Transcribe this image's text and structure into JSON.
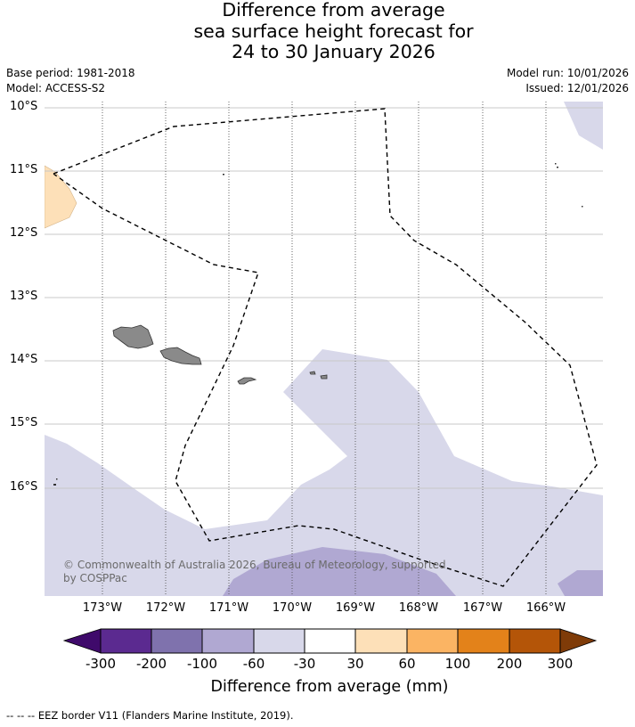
{
  "title": {
    "line1": "Difference from average",
    "line2": "sea surface height forecast for",
    "line3": "24 to 30 January 2026"
  },
  "meta": {
    "base_period": "Base period: 1981-2018",
    "model": "Model: ACCESS-S2",
    "model_run": "Model run: 10/01/2026",
    "issued": "Issued: 12/01/2026"
  },
  "map": {
    "lat_labels": [
      "10°S",
      "11°S",
      "12°S",
      "13°S",
      "14°S",
      "15°S",
      "16°S"
    ],
    "lon_labels": [
      "173°W",
      "172°W",
      "171°W",
      "170°W",
      "169°W",
      "168°W",
      "167°W",
      "166°W"
    ],
    "copyright_line1": "© Commonwealth of Australia 2026, Bureau of Meteorology, supported",
    "copyright_line2": "by COSPPac",
    "colors": {
      "land": "#8a8a8a",
      "band_minus60_minus30": "#d8d8ea",
      "band_minus100_minus60": "#b0a8d2",
      "band_30_60": "#fde0b8",
      "eez_line": "#000000"
    }
  },
  "colorbar": {
    "ticks": [
      "-300",
      "-200",
      "-100",
      "-60",
      "-30",
      "30",
      "60",
      "100",
      "200",
      "300"
    ],
    "colors": [
      "#3f0a6b",
      "#5b2a90",
      "#7f72ad",
      "#b0a8d2",
      "#d8d8ea",
      "#ffffff",
      "#fde0b8",
      "#fbb463",
      "#e3821a",
      "#b45508",
      "#7f3b08"
    ],
    "label": "Difference from average (mm)"
  },
  "footnote": "--  --  -- EEZ border V11 (Flanders Marine Institute, 2019)."
}
